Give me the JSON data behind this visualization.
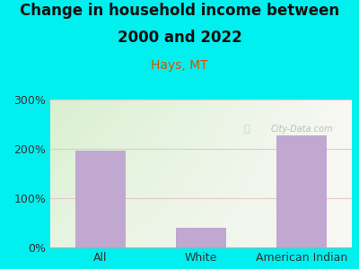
{
  "title_line1": "Change in household income between",
  "title_line2": "2000 and 2022",
  "subtitle": "Hays, MT",
  "categories": [
    "All",
    "White",
    "American Indian"
  ],
  "values": [
    196,
    40,
    228
  ],
  "bar_color": "#c0a8d0",
  "title_fontsize": 12,
  "subtitle_fontsize": 10,
  "subtitle_color": "#cc5500",
  "tick_label_fontsize": 9,
  "ylim": [
    0,
    300
  ],
  "yticks": [
    0,
    100,
    200,
    300
  ],
  "ytick_labels": [
    "0%",
    "100%",
    "200%",
    "300%"
  ],
  "background_outer": "#00f0f0",
  "grad_color_topleft": "#d8f0d0",
  "grad_color_bottomright": "#f8f8f4",
  "grid_color": "#e8c8c8",
  "watermark": "City-Data.com"
}
